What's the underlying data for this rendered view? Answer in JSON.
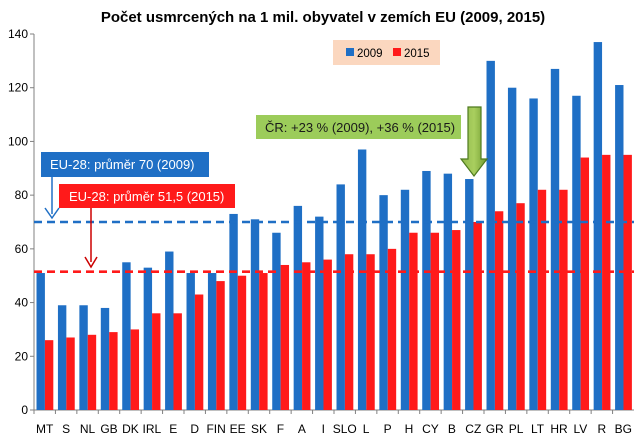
{
  "chart_data": {
    "type": "bar",
    "title": "Počet usmrcených  na 1 mil. obyvatel v  zemích EU (2009, 2015)",
    "categories": [
      "MT",
      "S",
      "NL",
      "GB",
      "DK",
      "IRL",
      "E",
      "D",
      "FIN",
      "EE",
      "SK",
      "F",
      "A",
      "I",
      "SLO",
      "L",
      "P",
      "H",
      "CY",
      "B",
      "CZ",
      "GR",
      "PL",
      "LT",
      "HR",
      "LV",
      "R",
      "BG"
    ],
    "series": [
      {
        "name": "2009",
        "color": "#1f6fc5",
        "values": [
          51,
          39,
          39,
          38,
          55,
          53,
          59,
          51,
          51,
          73,
          71,
          66,
          76,
          72,
          84,
          97,
          80,
          82,
          89,
          88,
          86,
          130,
          120,
          116,
          127,
          117,
          137,
          121
        ]
      },
      {
        "name": "2015",
        "color": "#ff1a1a",
        "values": [
          26,
          27,
          28,
          29,
          30,
          36,
          36,
          43,
          48,
          50,
          51,
          54,
          55,
          56,
          58,
          58,
          60,
          66,
          66,
          67,
          70,
          74,
          77,
          82,
          82,
          94,
          95,
          95
        ]
      }
    ],
    "ylim": [
      0,
      140
    ],
    "yticks": [
      0,
      20,
      40,
      60,
      80,
      100,
      120,
      140
    ],
    "grid": false,
    "legend_position": "top",
    "reference_lines": [
      {
        "value": 70,
        "color": "#1f6fc5",
        "label": "EU-28: průměr 70 (2009)"
      },
      {
        "value": 51.5,
        "color": "#ff1a1a",
        "label": "EU-28: průměr 51,5 (2015)"
      }
    ],
    "annotation": {
      "label": "ČR: +23 % (2009), +36 % (2015)",
      "target": "CZ"
    }
  }
}
